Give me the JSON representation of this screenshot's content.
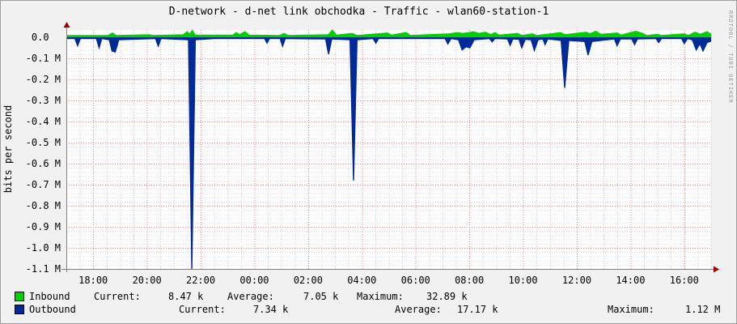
{
  "title": "D-network - d-net link obchodka - Traffic - wlan60-station-1",
  "watermark": "RRDTOOL / TOBI OETIKER",
  "colors": {
    "inbound": "#00CF00",
    "outbound": "#002A97",
    "grid_major": "#f08080",
    "grid_minor": "#cccccc",
    "grid_minor_h": "#dcdcdc",
    "axis": "#808080",
    "arrow": "#a00000",
    "plot_bg": "#ffffff",
    "page_bg": "#f1f1f1"
  },
  "chart_data": {
    "type": "area",
    "title": "D-network - d-net link obchodka - Traffic - wlan60-station-1",
    "xlabel": "",
    "ylabel": "bits per second",
    "ylim": [
      -1.1,
      0.035
    ],
    "y_unit": "M",
    "grid": true,
    "legend_position": "bottom",
    "y_ticks": [
      "0.0",
      "-0.1 M",
      "-0.2 M",
      "-0.3 M",
      "-0.4 M",
      "-0.5 M",
      "-0.6 M",
      "-0.7 M",
      "-0.8 M",
      "-0.9 M",
      "-1.0 M",
      "-1.1 M"
    ],
    "y_tick_values": [
      0,
      -0.1,
      -0.2,
      -0.3,
      -0.4,
      -0.5,
      -0.6,
      -0.7,
      -0.8,
      -0.9,
      -1.0,
      -1.1
    ],
    "x_ticks": [
      "18:00",
      "20:00",
      "22:00",
      "00:00",
      "02:00",
      "04:00",
      "06:00",
      "08:00",
      "10:00",
      "12:00",
      "14:00",
      "16:00"
    ],
    "x_tick_hours": [
      1,
      3,
      5,
      7,
      9,
      11,
      13,
      15,
      17,
      19,
      21,
      23
    ],
    "x_hours_range": [
      0,
      24
    ],
    "x_start_time": "17:00",
    "series": [
      {
        "name": "Inbound",
        "color": "#00CF00",
        "points": [
          [
            0,
            0.008
          ],
          [
            1.55,
            0.008
          ],
          [
            1.72,
            0.02
          ],
          [
            1.85,
            0.008
          ],
          [
            3.1,
            0.012
          ],
          [
            3.2,
            0.008
          ],
          [
            4.35,
            0.012
          ],
          [
            4.5,
            0.026
          ],
          [
            4.6,
            0.014
          ],
          [
            4.68,
            0.032
          ],
          [
            4.8,
            0.01
          ],
          [
            6.2,
            0.01
          ],
          [
            6.32,
            0.022
          ],
          [
            6.45,
            0.012
          ],
          [
            6.65,
            0.026
          ],
          [
            6.8,
            0.01
          ],
          [
            7.95,
            0.008
          ],
          [
            8.1,
            0.018
          ],
          [
            8.25,
            0.008
          ],
          [
            9.75,
            0.012
          ],
          [
            9.9,
            0.034
          ],
          [
            10.05,
            0.01
          ],
          [
            10.65,
            0.018
          ],
          [
            10.8,
            0.008
          ],
          [
            11.95,
            0.02
          ],
          [
            12.1,
            0.01
          ],
          [
            12.65,
            0.022
          ],
          [
            12.8,
            0.008
          ],
          [
            14.25,
            0.016
          ],
          [
            14.55,
            0.022
          ],
          [
            14.75,
            0.018
          ],
          [
            15.0,
            0.022
          ],
          [
            15.15,
            0.026
          ],
          [
            15.35,
            0.018
          ],
          [
            15.6,
            0.024
          ],
          [
            15.8,
            0.012
          ],
          [
            15.95,
            0.022
          ],
          [
            16.1,
            0.01
          ],
          [
            16.8,
            0.018
          ],
          [
            16.95,
            0.008
          ],
          [
            17.35,
            0.016
          ],
          [
            17.5,
            0.008
          ],
          [
            18.4,
            0.022
          ],
          [
            18.55,
            0.012
          ],
          [
            19.35,
            0.024
          ],
          [
            19.5,
            0.016
          ],
          [
            19.7,
            0.028
          ],
          [
            19.9,
            0.014
          ],
          [
            20.5,
            0.02
          ],
          [
            20.65,
            0.01
          ],
          [
            21.0,
            0.022
          ],
          [
            21.2,
            0.028
          ],
          [
            21.45,
            0.018
          ],
          [
            21.6,
            0.008
          ],
          [
            22.0,
            0.014
          ],
          [
            22.15,
            0.008
          ],
          [
            23.0,
            0.016
          ],
          [
            23.15,
            0.008
          ],
          [
            23.4,
            0.024
          ],
          [
            23.6,
            0.014
          ],
          [
            23.85,
            0.026
          ],
          [
            24,
            0.014
          ]
        ]
      },
      {
        "name": "Outbound",
        "color": "#002A97",
        "points": [
          [
            0,
            -0.006
          ],
          [
            0.32,
            -0.006
          ],
          [
            0.42,
            -0.04
          ],
          [
            0.52,
            -0.006
          ],
          [
            1.12,
            -0.006
          ],
          [
            1.22,
            -0.05
          ],
          [
            1.32,
            -0.006
          ],
          [
            1.6,
            -0.012
          ],
          [
            1.7,
            -0.065
          ],
          [
            1.82,
            -0.07
          ],
          [
            1.95,
            -0.012
          ],
          [
            3.32,
            -0.006
          ],
          [
            3.42,
            -0.042
          ],
          [
            3.52,
            -0.006
          ],
          [
            4.55,
            -0.012
          ],
          [
            4.67,
            -1.12
          ],
          [
            4.8,
            -0.012
          ],
          [
            5.5,
            -0.006
          ],
          [
            7.38,
            -0.006
          ],
          [
            7.47,
            -0.028
          ],
          [
            7.56,
            -0.006
          ],
          [
            7.96,
            -0.006
          ],
          [
            8.05,
            -0.042
          ],
          [
            8.15,
            -0.006
          ],
          [
            9.65,
            -0.008
          ],
          [
            9.76,
            -0.08
          ],
          [
            9.88,
            -0.008
          ],
          [
            10.56,
            -0.012
          ],
          [
            10.69,
            -0.68
          ],
          [
            10.82,
            -0.012
          ],
          [
            11.42,
            -0.006
          ],
          [
            11.52,
            -0.028
          ],
          [
            11.62,
            -0.006
          ],
          [
            14.1,
            -0.006
          ],
          [
            14.2,
            -0.032
          ],
          [
            14.32,
            -0.006
          ],
          [
            14.6,
            -0.012
          ],
          [
            14.73,
            -0.06
          ],
          [
            14.88,
            -0.045
          ],
          [
            15.02,
            -0.05
          ],
          [
            15.18,
            -0.012
          ],
          [
            15.75,
            -0.006
          ],
          [
            15.85,
            -0.022
          ],
          [
            15.95,
            -0.006
          ],
          [
            16.42,
            -0.008
          ],
          [
            16.52,
            -0.038
          ],
          [
            16.62,
            -0.008
          ],
          [
            16.85,
            -0.01
          ],
          [
            16.95,
            -0.05
          ],
          [
            17.08,
            -0.01
          ],
          [
            17.3,
            -0.012
          ],
          [
            17.42,
            -0.062
          ],
          [
            17.56,
            -0.012
          ],
          [
            17.74,
            -0.008
          ],
          [
            17.82,
            -0.035
          ],
          [
            17.92,
            -0.008
          ],
          [
            18.42,
            -0.015
          ],
          [
            18.55,
            -0.24
          ],
          [
            18.7,
            -0.015
          ],
          [
            19.3,
            -0.02
          ],
          [
            19.42,
            -0.085
          ],
          [
            19.56,
            -0.02
          ],
          [
            20.4,
            -0.008
          ],
          [
            20.5,
            -0.04
          ],
          [
            20.62,
            -0.008
          ],
          [
            21.05,
            -0.008
          ],
          [
            21.15,
            -0.035
          ],
          [
            21.26,
            -0.008
          ],
          [
            21.95,
            -0.006
          ],
          [
            22.05,
            -0.025
          ],
          [
            22.15,
            -0.006
          ],
          [
            22.9,
            -0.006
          ],
          [
            23.0,
            -0.03
          ],
          [
            23.12,
            -0.006
          ],
          [
            23.3,
            -0.012
          ],
          [
            23.45,
            -0.06
          ],
          [
            23.58,
            -0.03
          ],
          [
            23.7,
            -0.065
          ],
          [
            23.85,
            -0.025
          ],
          [
            24,
            -0.018
          ]
        ]
      }
    ]
  },
  "legend": {
    "rows": [
      {
        "name": "Inbound",
        "color": "#00CF00",
        "current_label": "Current:",
        "current": "8.47 k",
        "average_label": "Average:",
        "average": "7.05 k",
        "maximum_label": "Maximum:",
        "maximum": "32.89 k"
      },
      {
        "name": "Outbound",
        "color": "#002A97",
        "current_label": "Current:",
        "current": "7.34 k",
        "average_label": "Average:",
        "average": "17.17 k",
        "maximum_label": "Maximum:",
        "maximum": "1.12 M"
      }
    ]
  }
}
